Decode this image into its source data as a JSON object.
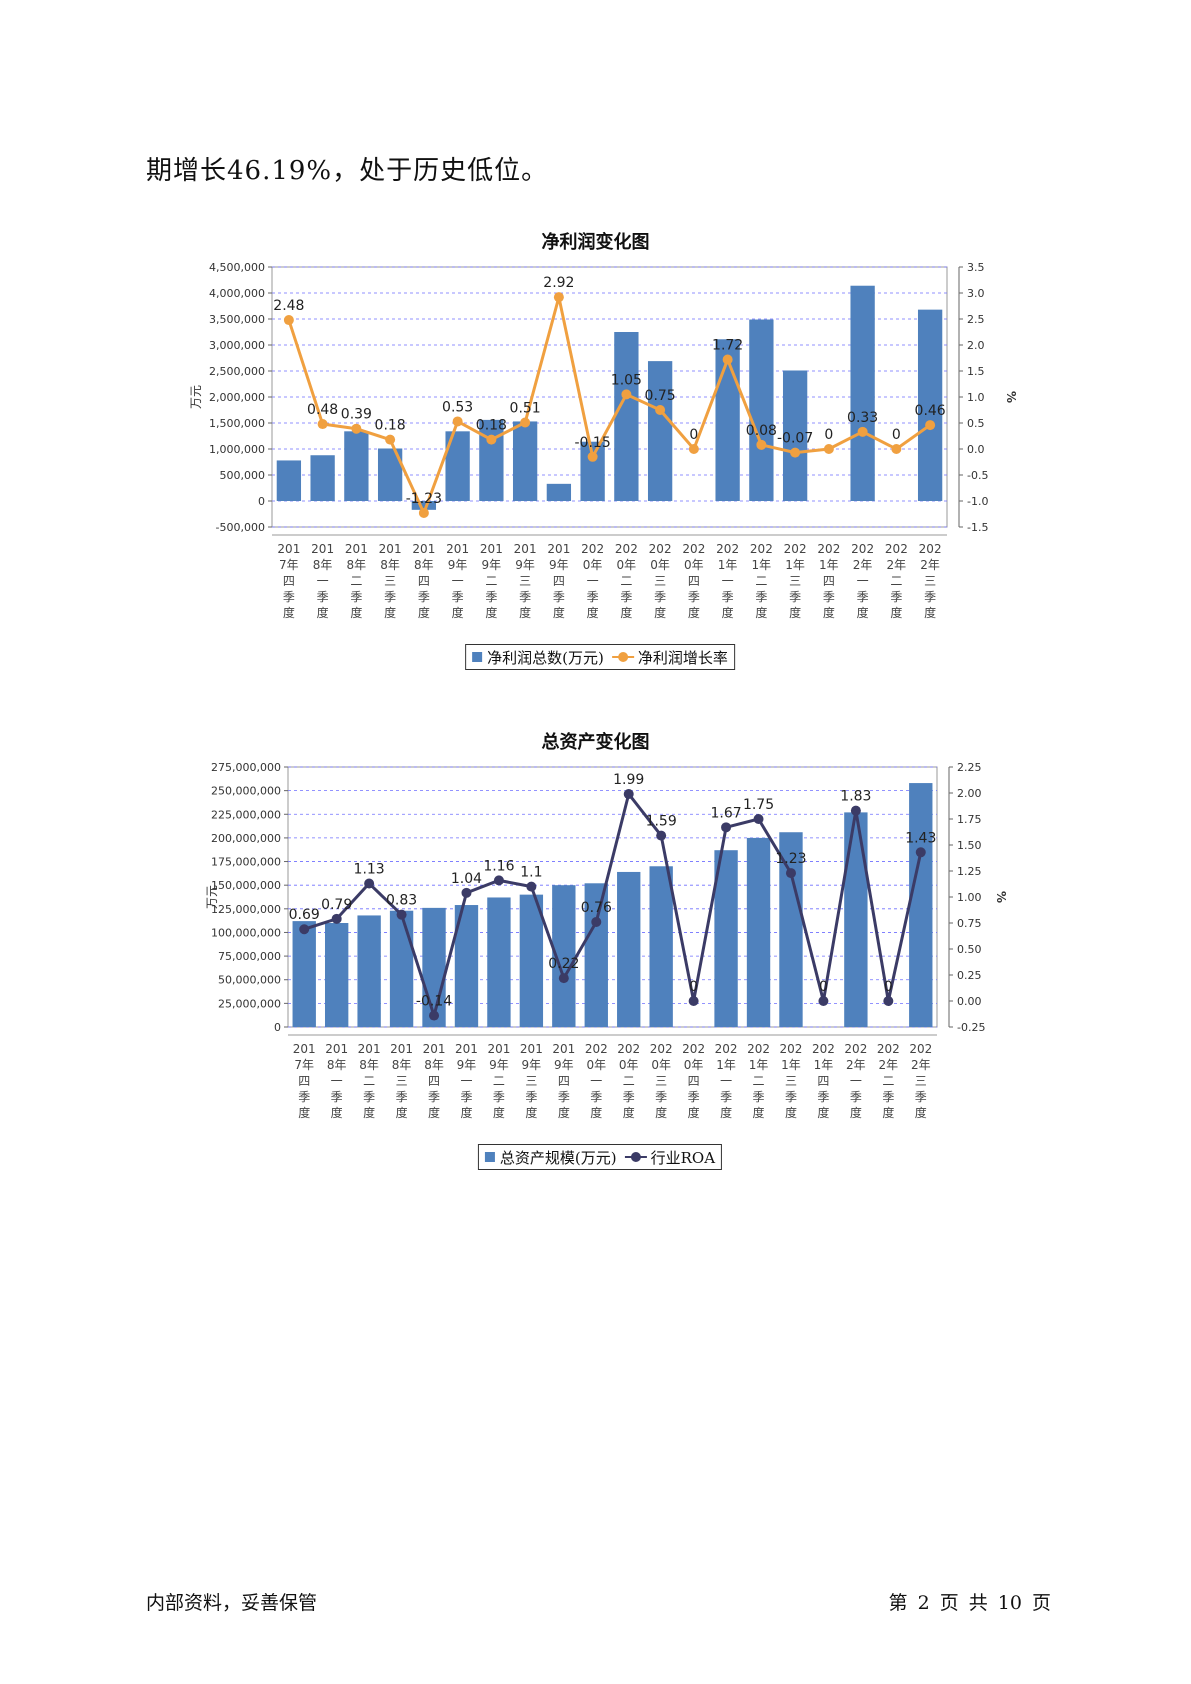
{
  "intro_text": "期增长46.19%，处于历史低位。",
  "footer": {
    "left": "内部资料，妥善保管",
    "right": "第 2 页  共 10 页"
  },
  "colors": {
    "bar": "#4f81bd",
    "line1": "#f0a040",
    "line2": "#3b3b66",
    "grid": "#6f6fff"
  },
  "chart_data": [
    {
      "type": "bar",
      "title": "净利润变化图",
      "categories": [
        "2017年四季度",
        "2018年一季度",
        "2018年二季度",
        "2018年三季度",
        "2018年四季度",
        "2019年一季度",
        "2019年二季度",
        "2019年三季度",
        "2019年四季度",
        "2020年一季度",
        "2020年二季度",
        "2020年三季度",
        "2020年四季度",
        "2021年一季度",
        "2021年二季度",
        "2021年三季度",
        "2021年四季度",
        "2022年一季度",
        "2022年二季度",
        "2022年三季度"
      ],
      "ylabel": "万元",
      "y2label": "%",
      "ylim": [
        -500000,
        4500000
      ],
      "y2lim": [
        -1.5,
        3.5
      ],
      "yticks": [
        "-500,000",
        "0",
        "500,000",
        "1,000,000",
        "1,500,000",
        "2,000,000",
        "2,500,000",
        "3,000,000",
        "3,500,000",
        "4,000,000",
        "4,500,000"
      ],
      "y2ticks": [
        "-1.5",
        "-1.0",
        "-0.5",
        "0.0",
        "0.5",
        "1.0",
        "1.5",
        "2.0",
        "2.5",
        "3.0",
        "3.5"
      ],
      "series": [
        {
          "name": "净利润总数(万元)",
          "type": "bar",
          "values": [
            780000,
            880000,
            1340000,
            1010000,
            -170000,
            1340000,
            1560000,
            1530000,
            330000,
            1140000,
            3250000,
            2690000,
            0,
            3110000,
            3490000,
            2510000,
            0,
            4140000,
            0,
            3680000
          ]
        },
        {
          "name": "净利润增长率",
          "type": "line",
          "values": [
            2.48,
            0.48,
            0.39,
            0.18,
            -1.23,
            0.53,
            0.18,
            0.51,
            2.92,
            -0.15,
            1.05,
            0.75,
            0,
            1.72,
            0.08,
            -0.07,
            0,
            0.33,
            0,
            0.46
          ],
          "labels": [
            "2.48",
            "0.48",
            "0.39",
            "0.18",
            "-1.23",
            "0.53",
            "0.18",
            "0.51",
            "2.92",
            "-0.15",
            "1.05",
            "0.75",
            "0",
            "1.72",
            "0.08",
            "-0.07",
            "0",
            "0.33",
            "0",
            "0.46"
          ]
        }
      ],
      "grid": true,
      "legend": "bottom-center"
    },
    {
      "type": "bar",
      "title": "总资产变化图",
      "categories": [
        "2017年四季度",
        "2018年一季度",
        "2018年二季度",
        "2018年三季度",
        "2018年四季度",
        "2019年一季度",
        "2019年二季度",
        "2019年三季度",
        "2019年四季度",
        "2020年一季度",
        "2020年二季度",
        "2020年三季度",
        "2020年四季度",
        "2021年一季度",
        "2021年二季度",
        "2021年三季度",
        "2021年四季度",
        "2022年一季度",
        "2022年二季度",
        "2022年三季度"
      ],
      "ylabel": "万元",
      "y2label": "%",
      "ylim": [
        0,
        275000000
      ],
      "y2lim": [
        -0.25,
        2.25
      ],
      "yticks": [
        "0",
        "25,000,000",
        "50,000,000",
        "75,000,000",
        "100,000,000",
        "125,000,000",
        "150,000,000",
        "175,000,000",
        "200,000,000",
        "225,000,000",
        "250,000,000",
        "275,000,000"
      ],
      "y2ticks": [
        "-0.25",
        "0.00",
        "0.25",
        "0.50",
        "0.75",
        "1.00",
        "1.25",
        "1.50",
        "1.75",
        "2.00",
        "2.25"
      ],
      "series": [
        {
          "name": "总资产规模(万元)",
          "type": "bar",
          "values": [
            112000000,
            110000000,
            118000000,
            123000000,
            126000000,
            129000000,
            137000000,
            140000000,
            150000000,
            152000000,
            164000000,
            170000000,
            0,
            187000000,
            200000000,
            206000000,
            0,
            227000000,
            0,
            258000000
          ]
        },
        {
          "name": "行业ROA",
          "type": "line",
          "values": [
            0.69,
            0.79,
            1.13,
            0.83,
            -0.14,
            1.04,
            1.16,
            1.1,
            0.22,
            0.76,
            1.99,
            1.59,
            0,
            1.67,
            1.75,
            1.23,
            0,
            1.83,
            0,
            1.43
          ],
          "labels": [
            "0.69",
            "0.79",
            "1.13",
            "0.83",
            "-0.14",
            "1.04",
            "1.16",
            "1.1",
            "0.22",
            "0.76",
            "1.99",
            "1.59",
            "0",
            "1.67",
            "1.75",
            "1.23",
            "0",
            "1.83",
            "0",
            "1.43"
          ]
        }
      ],
      "grid": true,
      "legend": "bottom-center"
    }
  ]
}
